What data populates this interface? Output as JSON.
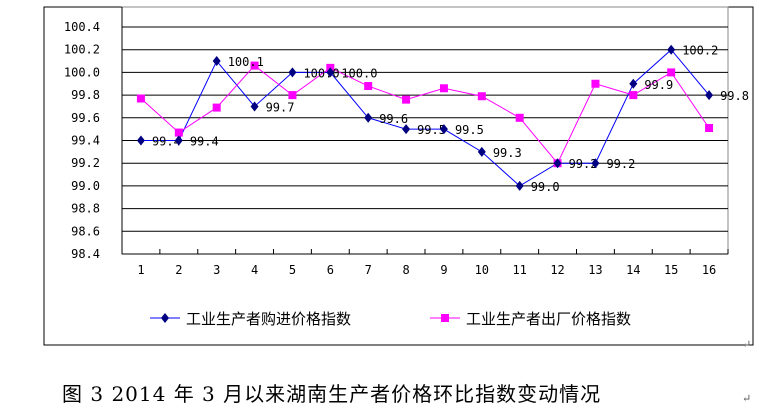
{
  "chart_data": {
    "type": "line",
    "title": "图 3 2014 年 3 月以来湖南生产者价格环比指数变动情况",
    "xlabel": "",
    "ylabel": "",
    "categories": [
      "1",
      "2",
      "3",
      "4",
      "5",
      "6",
      "7",
      "8",
      "9",
      "10",
      "11",
      "12",
      "13",
      "14",
      "15",
      "16"
    ],
    "ylim": [
      98.4,
      100.4
    ],
    "yticks": [
      "98.4",
      "98.6",
      "98.8",
      "99.0",
      "99.2",
      "99.4",
      "99.6",
      "99.8",
      "100.0",
      "100.2",
      "100.4"
    ],
    "grid": true,
    "legend_position": "bottom",
    "series": [
      {
        "name": "工业生产者购进价格指数",
        "color": "#0000ff",
        "marker_color": "#000080",
        "values": [
          99.4,
          99.4,
          100.1,
          99.7,
          100.0,
          100.0,
          99.6,
          99.5,
          99.5,
          99.3,
          99.0,
          99.2,
          99.2,
          99.9,
          100.2,
          99.8
        ],
        "labels": [
          "99.4",
          "99.4",
          "100.1",
          "99.7",
          "100.0",
          "100.0",
          "99.6",
          "99.5",
          "99.5",
          "99.3",
          "99.0",
          "99.2",
          "99.2",
          "99.9",
          "100.2",
          "99.8"
        ]
      },
      {
        "name": "工业生产者出厂价格指数",
        "color": "#ff00ff",
        "marker_color": "#ff00ff",
        "values": [
          99.77,
          99.47,
          99.69,
          100.06,
          99.8,
          100.04,
          99.88,
          99.76,
          99.86,
          99.79,
          99.6,
          99.2,
          99.9,
          99.8,
          100.0,
          99.51
        ]
      }
    ]
  }
}
